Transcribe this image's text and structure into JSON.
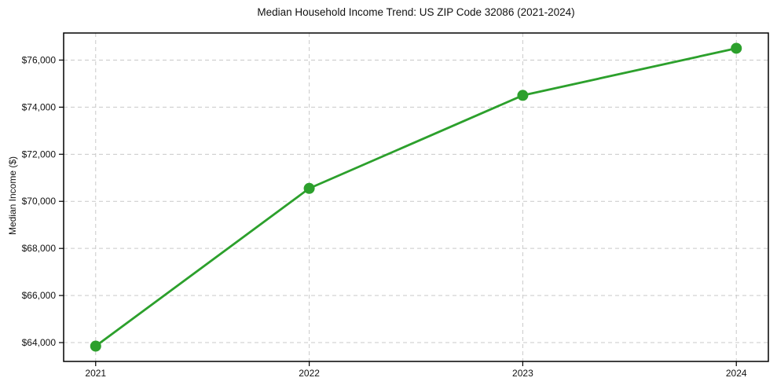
{
  "chart_data": {
    "type": "line",
    "title": "Median Household Income Trend: US ZIP Code 32086 (2021-2024)",
    "xlabel": "",
    "ylabel": "Median Income ($)",
    "x": [
      2021,
      2022,
      2023,
      2024
    ],
    "categories": [
      "2021",
      "2022",
      "2023",
      "2024"
    ],
    "series": [
      {
        "name": "Median Household Income",
        "values": [
          63850,
          70550,
          74500,
          76500
        ]
      }
    ],
    "xlim": [
      2020.85,
      2024.15
    ],
    "ylim": [
      63200,
      77150
    ],
    "xticks": [
      2021,
      2022,
      2023,
      2024
    ],
    "xtick_labels": [
      "2021",
      "2022",
      "2023",
      "2024"
    ],
    "yticks": [
      64000,
      66000,
      68000,
      70000,
      72000,
      74000,
      76000
    ],
    "ytick_labels": [
      "$64,000",
      "$66,000",
      "$68,000",
      "$70,000",
      "$72,000",
      "$74,000",
      "$76,000"
    ],
    "grid": true,
    "legend": "none",
    "colors": {
      "line": "#2ca02c",
      "marker": "#2ca02c",
      "grid": "#c9c9c9",
      "spine": "#000000",
      "text": "#111111",
      "background": "#ffffff"
    },
    "marker": "circle",
    "marker_radius": 7,
    "line_width": 2.8
  }
}
